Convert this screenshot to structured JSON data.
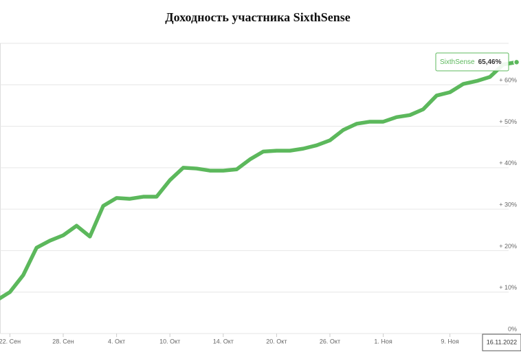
{
  "chart_data": {
    "type": "line",
    "title": "Доходность участника SixthSense",
    "categories": [
      null,
      "22. Сен",
      null,
      null,
      null,
      "28. Сен",
      null,
      null,
      null,
      "4. Окт",
      null,
      null,
      null,
      "10. Окт",
      null,
      null,
      null,
      "14. Окт",
      null,
      null,
      null,
      "20. Окт",
      null,
      null,
      null,
      "26. Окт",
      null,
      null,
      null,
      "1. Ноя",
      null,
      null,
      null,
      null,
      "9. Ноя",
      null,
      null,
      null,
      null,
      "16.11.2022"
    ],
    "series": [
      {
        "name": "SixthSense",
        "color": "#5cb85c",
        "values": [
          8.0,
          10.0,
          14.1,
          20.7,
          22.4,
          23.7,
          26.0,
          23.4,
          30.8,
          32.7,
          32.5,
          33.0,
          33.0,
          37.0,
          40.0,
          39.8,
          39.3,
          39.3,
          39.6,
          42.0,
          43.9,
          44.1,
          44.1,
          44.6,
          45.4,
          46.6,
          49.1,
          50.6,
          51.1,
          51.1,
          52.2,
          52.7,
          54.1,
          57.4,
          58.2,
          60.2,
          60.9,
          61.9,
          64.9,
          65.46
        ],
        "value_labels": [
          null,
          null,
          null,
          null,
          null,
          null,
          null,
          null,
          null,
          null,
          null,
          null,
          null,
          null,
          null,
          null,
          null,
          null,
          null,
          null,
          null,
          null,
          null,
          null,
          null,
          null,
          null,
          null,
          null,
          null,
          null,
          null,
          null,
          null,
          null,
          null,
          null,
          null,
          null,
          "65,46%"
        ]
      }
    ],
    "ylim": [
      0,
      70
    ],
    "yticks": [
      {
        "value": 0,
        "label": "0%"
      },
      {
        "value": 10,
        "label": "+ 10%"
      },
      {
        "value": 20,
        "label": "+ 20%"
      },
      {
        "value": 30,
        "label": "+ 30%"
      },
      {
        "value": 40,
        "label": "+ 40%"
      },
      {
        "value": 50,
        "label": "+ 50%"
      },
      {
        "value": 60,
        "label": "+ 60%"
      }
    ],
    "grid": true
  }
}
